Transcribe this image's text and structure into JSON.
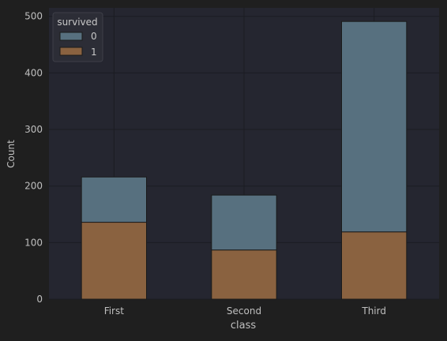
{
  "chart_data": {
    "type": "bar",
    "stacked": true,
    "categories": [
      "First",
      "Second",
      "Third"
    ],
    "series": [
      {
        "name": "1",
        "values": [
          136,
          87,
          119
        ],
        "color": "#8a6240"
      },
      {
        "name": "0",
        "values": [
          80,
          97,
          372
        ],
        "color": "#57707f"
      }
    ],
    "xlabel": "class",
    "ylabel": "Count",
    "ylim": [
      0,
      515
    ],
    "yticks": [
      0,
      100,
      200,
      300,
      400,
      500
    ],
    "grid": true,
    "legend": {
      "title": "survived",
      "placement": "top-left",
      "entries": [
        {
          "label": "0",
          "color": "#57707f"
        },
        {
          "label": "1",
          "color": "#8a6240"
        }
      ]
    },
    "colors": {
      "background": "#1f1f1f",
      "plot_background": "#252630",
      "grid": "#1b1c22",
      "text": "#bfbfbf",
      "bar_edge": "#1a1a1a"
    }
  }
}
